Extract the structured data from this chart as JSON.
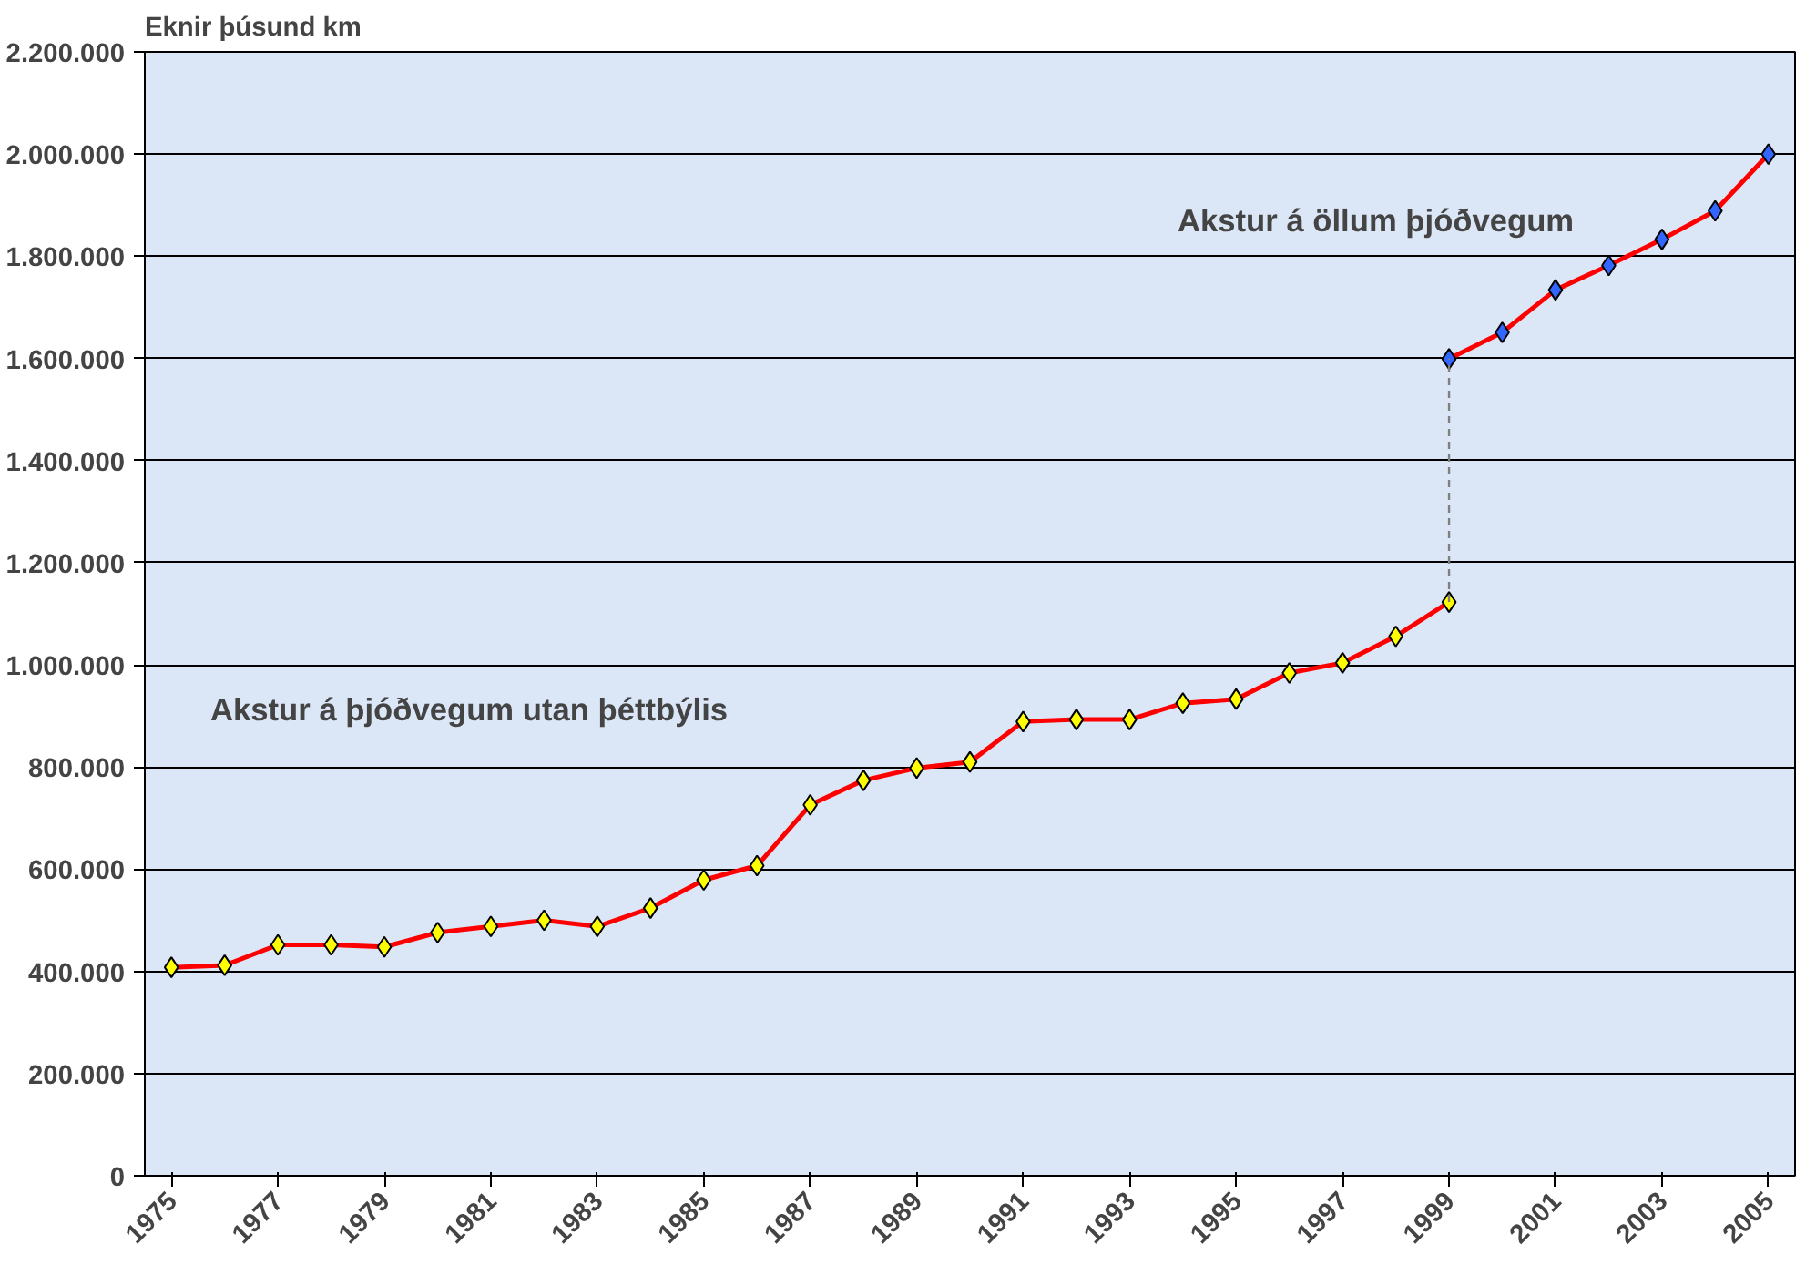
{
  "chart_data": {
    "type": "line",
    "ylabel": "Eknir þúsund km",
    "xlim": [
      1974.5,
      2005.5
    ],
    "xticks": [
      {
        "value": 1975,
        "label": "1975"
      },
      {
        "value": 1977,
        "label": "1977"
      },
      {
        "value": 1979,
        "label": "1979"
      },
      {
        "value": 1981,
        "label": "1981"
      },
      {
        "value": 1983,
        "label": "1983"
      },
      {
        "value": 1985,
        "label": "1985"
      },
      {
        "value": 1987,
        "label": "1987"
      },
      {
        "value": 1989,
        "label": "1989"
      },
      {
        "value": 1991,
        "label": "1991"
      },
      {
        "value": 1993,
        "label": "1993"
      },
      {
        "value": 1995,
        "label": "1995"
      },
      {
        "value": 1997,
        "label": "1997"
      },
      {
        "value": 1999,
        "label": "1999"
      },
      {
        "value": 2001,
        "label": "2001"
      },
      {
        "value": 2003,
        "label": "2003"
      },
      {
        "value": 2005,
        "label": "2005"
      }
    ],
    "ylim": [
      0,
      2200000
    ],
    "yticks": [
      0,
      {
        "value": 200000,
        "label": "200.000"
      },
      {
        "value": 400000,
        "label": "400.000"
      },
      {
        "value": 600000,
        "label": "600.000"
      },
      {
        "value": 800000,
        "label": "800.000"
      },
      {
        "value": 1000000,
        "label": "1.000.000"
      },
      {
        "value": 1200000,
        "label": "1.200.000"
      },
      {
        "value": 1400000,
        "label": "1.400.000"
      },
      {
        "value": 1600000,
        "label": "1.600.000"
      },
      {
        "value": 1800000,
        "label": "1.800.000"
      },
      {
        "value": 2000000,
        "label": "2.000.000"
      },
      {
        "value": 2200000,
        "label": "2.200.000"
      }
    ],
    "grid": "y",
    "marker": "diamond",
    "line_style": "solid",
    "series": [
      {
        "color": "#ff0000",
        "colors": [
          "#ffff00",
          "#ffff00",
          "#ffff00",
          "#ffff00",
          "#ffff00",
          "#ffff00",
          "#ffff00",
          "#ffff00",
          "#ffff00",
          "#ffff00",
          "#ffff00",
          "#ffff00",
          "#ffff00",
          "#ffff00",
          "#ffff00",
          "#ffff00",
          "#ffff00",
          "#ffff00",
          "#ffff00",
          "#ffff00",
          "#ffff00",
          "#ffff00",
          "#ffff00",
          "#ffff00",
          "#ffff00"
        ],
        "x": [
          1975,
          1976,
          1977,
          1978,
          1979,
          1980,
          1981,
          1982,
          1983,
          1984,
          1985,
          1986,
          1987,
          1988,
          1989,
          1990,
          1991,
          1992,
          1993,
          1994,
          1995,
          1996,
          1997,
          1998,
          1999
        ],
        "values": [
          408000,
          412000,
          452000,
          452000,
          448000,
          476000,
          488000,
          500000,
          488000,
          524000,
          579000,
          607000,
          726000,
          774000,
          798000,
          810000,
          889000,
          893000,
          893000,
          925000,
          933000,
          984000,
          1004000,
          1056000,
          1123000
        ]
      },
      {
        "color": "#ff0000",
        "colors": [
          "#3366ff",
          "#3366ff",
          "#3366ff",
          "#3366ff",
          "#3366ff",
          "#3366ff",
          "#3366ff"
        ],
        "x": [
          1999,
          2000,
          2001,
          2002,
          2003,
          2004,
          2005
        ],
        "values": [
          1599000,
          1651000,
          1734000,
          1782000,
          1833000,
          1889000,
          2000000
        ]
      },
      {
        "color": "#808080",
        "marker": "none",
        "line_style": "dashed",
        "x": [
          1999,
          1999
        ],
        "values": [
          1123000,
          1599000
        ]
      }
    ],
    "annotations": [
      "Akstur á þjóðvegum utan þéttbýlis",
      "Akstur á öllum þjóðvegum"
    ]
  }
}
